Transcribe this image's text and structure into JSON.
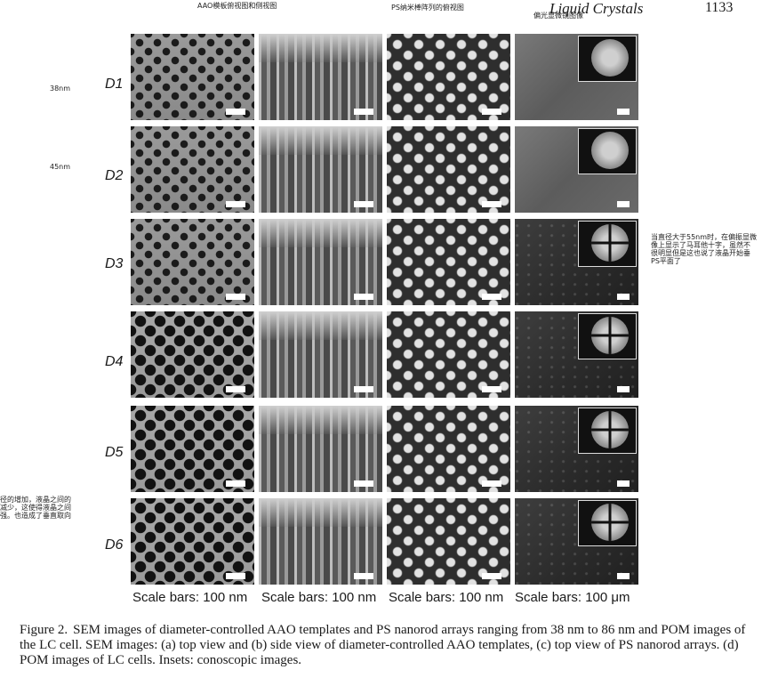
{
  "header": {
    "journal": "Liquid Crystals",
    "page_number": "1133"
  },
  "notes": {
    "col1": "AAO模板俯视图和侧视图",
    "col3": "PS纳米棒阵列的俯视图",
    "col4": "偏光显微镜图像",
    "d1": "38nm",
    "d2": "45nm",
    "right_lines": [
      "当直径大于55nm时，在偏振显微",
      "像上显示了马耳他十字，虽然不",
      "很明显但是这也说了液晶开始垂",
      "PS平面了"
    ],
    "left_lines": [
      "径的增加，液晶之间的",
      "减少，这使得液晶之间",
      "强。也造成了垂直取向"
    ]
  },
  "rows": [
    "D1",
    "D2",
    "D3",
    "D4",
    "D5",
    "D6"
  ],
  "scale_labels": [
    "Scale bars: 100 nm",
    "Scale bars: 100 nm",
    "Scale bars: 100 nm",
    "Scale bars: 100 μm"
  ],
  "caption": {
    "figure": "Figure 2.",
    "text": "SEM images of diameter-controlled AAO templates and PS nanorod arrays ranging from 38 nm to 86 nm and POM images of the LC cell. SEM images: (a) top view and (b) side view of diameter-controlled AAO templates, (c) top view of PS nanorod arrays. (d) POM images of LC cells. Insets: conoscopic images."
  }
}
